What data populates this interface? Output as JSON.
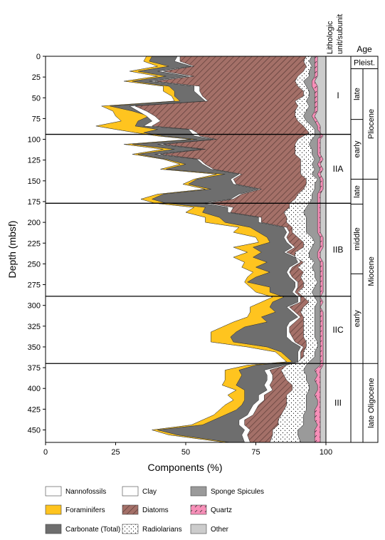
{
  "chart_data": {
    "type": "area",
    "xlabel": "Components (%)",
    "ylabel": "Depth (mbsf)",
    "xlim": [
      0,
      100
    ],
    "ylim": [
      0,
      465
    ],
    "xticks": [
      "0",
      "25",
      "50",
      "75",
      "100"
    ],
    "yticks": [
      "0",
      "25",
      "50",
      "75",
      "100",
      "125",
      "150",
      "175",
      "200",
      "225",
      "250",
      "275",
      "300",
      "325",
      "350",
      "375",
      "400",
      "425",
      "450"
    ],
    "lithology_header": [
      "Lithologic",
      "unit/subunit"
    ],
    "age_header": "Age",
    "depth": [
      0,
      6,
      12,
      18,
      24,
      30,
      36,
      42,
      48,
      54,
      60,
      66,
      72,
      78,
      84,
      88,
      92,
      96,
      100,
      106,
      112,
      118,
      124,
      130,
      136,
      142,
      148,
      154,
      160,
      166,
      172,
      177,
      182,
      188,
      194,
      200,
      206,
      212,
      218,
      224,
      230,
      236,
      242,
      248,
      254,
      260,
      266,
      272,
      278,
      284,
      290,
      296,
      302,
      308,
      314,
      320,
      326,
      332,
      338,
      344,
      350,
      356,
      362,
      368,
      372,
      378,
      384,
      390,
      396,
      402,
      408,
      414,
      420,
      426,
      432,
      438,
      444,
      450,
      456,
      465
    ],
    "series": [
      {
        "name": "Nannofossils",
        "color": "#ffffff",
        "values": [
          36,
          35,
          40,
          30,
          40,
          28,
          42,
          42,
          45,
          46,
          20,
          24,
          25,
          27,
          18,
          25,
          32,
          40,
          52,
          28,
          42,
          31,
          42,
          48,
          41,
          61,
          53,
          49,
          57,
          40,
          34,
          39,
          53,
          50,
          57,
          57,
          69,
          67,
          75,
          76,
          67,
          72,
          67,
          71,
          70,
          74,
          72,
          71,
          73,
          75,
          81,
          77,
          73,
          73,
          72,
          67,
          63,
          59,
          59,
          59,
          72,
          82,
          84,
          86,
          72,
          64,
          64,
          64,
          63,
          68,
          65,
          67,
          64,
          62,
          60,
          56,
          52,
          38,
          44,
          64
        ]
      },
      {
        "name": "Foraminifers",
        "color": "#ffc41f",
        "values": [
          38,
          37,
          44,
          33,
          43,
          31,
          44,
          46,
          46,
          48,
          23,
          31,
          37,
          33,
          32,
          40,
          35,
          42,
          54,
          31,
          46,
          33,
          43,
          50,
          43,
          64,
          54,
          51,
          59,
          42,
          38,
          43,
          57,
          56,
          62,
          64,
          73,
          76,
          79,
          80,
          74,
          77,
          74,
          79,
          75,
          80,
          75,
          72,
          80,
          80,
          85,
          81,
          80,
          82,
          77,
          79,
          71,
          68,
          66,
          67,
          79,
          84,
          86,
          88,
          75,
          69,
          70,
          69,
          68,
          71,
          71,
          71,
          70,
          68,
          64,
          60,
          56,
          40,
          47,
          66
        ]
      },
      {
        "name": "Carbonate (Total)",
        "color": "#6e6e6e",
        "values": [
          47,
          46,
          52,
          40,
          51,
          37,
          53,
          53,
          55,
          57,
          30,
          33,
          36,
          38,
          35,
          51,
          52,
          53,
          60,
          40,
          56,
          39,
          54,
          56,
          59,
          69,
          66,
          67,
          76,
          69,
          66,
          56,
          65,
          65,
          76,
          76,
          85,
          86,
          85,
          86,
          88,
          85,
          89,
          90,
          87,
          86,
          87,
          89,
          89,
          88,
          90,
          90,
          86,
          88,
          90,
          87,
          86,
          86,
          86,
          88,
          91,
          90,
          90,
          90,
          85,
          78,
          79,
          79,
          78,
          79,
          76,
          76,
          74,
          73,
          72,
          69,
          69,
          71,
          70,
          71
        ]
      },
      {
        "name": "Clay",
        "color": "#ffffff",
        "values": [
          48,
          48,
          53,
          42,
          53,
          39,
          55,
          55,
          56,
          58,
          32,
          36,
          39,
          41,
          38,
          52,
          54,
          55,
          61,
          42,
          57,
          41,
          55,
          57,
          60,
          70,
          67,
          68,
          77,
          70,
          67,
          58,
          67,
          66,
          77,
          77,
          86,
          87,
          86,
          87,
          89,
          86,
          90,
          91,
          88,
          87,
          88,
          90,
          90,
          89,
          91,
          91,
          87,
          89,
          91,
          89,
          87,
          87,
          88,
          89,
          92,
          91,
          91,
          91,
          86,
          80,
          81,
          81,
          80,
          81,
          78,
          78,
          76,
          75,
          74,
          71,
          71,
          73,
          72,
          73
        ]
      },
      {
        "name": "Diatoms",
        "color": "#a47068",
        "values": [
          93,
          92,
          93,
          92,
          90,
          89,
          90,
          92,
          92,
          89,
          90,
          89,
          89,
          90,
          92,
          93,
          94,
          92,
          90,
          89,
          89,
          89,
          91,
          91,
          91,
          91,
          93,
          93,
          92,
          90,
          89,
          87,
          87,
          85,
          86,
          86,
          88,
          88,
          90,
          92,
          92,
          89,
          89,
          92,
          90,
          92,
          91,
          92,
          92,
          90,
          92,
          94,
          92,
          91,
          92,
          92,
          92,
          92,
          92,
          93,
          93,
          92,
          92,
          90,
          86,
          84,
          85,
          86,
          88,
          88,
          86,
          86,
          86,
          85,
          84,
          83,
          83,
          81,
          81,
          80
        ]
      },
      {
        "name": "Radiolarians",
        "color": "#ffffff",
        "values": [
          95,
          94,
          95,
          94,
          94,
          92,
          93,
          94,
          94,
          93,
          94,
          93,
          92,
          93,
          95,
          96,
          96,
          96,
          95,
          94,
          95,
          95,
          96,
          95,
          96,
          95,
          97,
          96,
          96,
          95,
          95,
          94,
          93,
          92,
          93,
          93,
          93,
          93,
          95,
          96,
          95,
          94,
          94,
          96,
          95,
          96,
          96,
          97,
          96,
          95,
          96,
          97,
          96,
          96,
          96,
          96,
          96,
          96,
          96,
          97,
          97,
          96,
          96,
          94,
          93,
          92,
          93,
          93,
          94,
          94,
          93,
          93,
          93,
          93,
          92,
          92,
          92,
          90,
          90,
          91
        ]
      },
      {
        "name": "Sponge Spicules",
        "color": "#9a9a9a",
        "values": [
          96,
          96,
          96,
          96,
          96,
          95,
          95,
          96,
          96,
          96,
          96,
          96,
          95,
          96,
          97,
          97,
          98,
          98,
          97,
          97,
          97,
          97,
          98,
          97,
          98,
          97,
          98,
          98,
          98,
          97,
          97,
          97,
          97,
          97,
          97,
          97,
          97,
          97,
          98,
          98,
          98,
          97,
          97,
          98,
          98,
          98,
          98,
          98,
          98,
          98,
          98,
          98,
          98,
          98,
          98,
          98,
          98,
          98,
          98,
          98,
          98,
          98,
          98,
          98,
          98,
          96,
          97,
          96,
          97,
          97,
          96,
          97,
          97,
          96,
          96,
          96,
          97,
          96,
          96,
          96
        ]
      },
      {
        "name": "Quartz",
        "color": "#f78fb8",
        "values": [
          97,
          97,
          97,
          97,
          97,
          96,
          97,
          97,
          97,
          97,
          97,
          97,
          96,
          97,
          98,
          98,
          98,
          99,
          98,
          98,
          98,
          98,
          99,
          98,
          99,
          98,
          99,
          99,
          99,
          98,
          98,
          98,
          98,
          98,
          98,
          98,
          98,
          98,
          99,
          99,
          99,
          98,
          98,
          99,
          99,
          99,
          99,
          99,
          99,
          99,
          98,
          99,
          98,
          99,
          99,
          99,
          99,
          99,
          99,
          99,
          99,
          99,
          99,
          99,
          99,
          98,
          98,
          98,
          98,
          98,
          98,
          98,
          98,
          98,
          98,
          98,
          98,
          98,
          98,
          98
        ]
      },
      {
        "name": "Other",
        "color": "#cccccc",
        "values": [
          100,
          100,
          100,
          100,
          100,
          100,
          100,
          100,
          100,
          100,
          100,
          100,
          100,
          100,
          100,
          100,
          100,
          100,
          100,
          100,
          100,
          100,
          100,
          100,
          100,
          100,
          100,
          100,
          100,
          100,
          100,
          100,
          100,
          100,
          100,
          100,
          100,
          100,
          100,
          100,
          100,
          100,
          100,
          100,
          100,
          100,
          100,
          100,
          100,
          100,
          100,
          100,
          100,
          100,
          100,
          100,
          100,
          100,
          100,
          100,
          100,
          100,
          100,
          100,
          100,
          100,
          100,
          100,
          100,
          100,
          100,
          100,
          100,
          100,
          100,
          100,
          100,
          100,
          100,
          100
        ]
      }
    ],
    "unit_boundaries": [
      94,
      177,
      289,
      370
    ],
    "lithologic_units": [
      {
        "label": "I",
        "top": 0,
        "bottom": 94
      },
      {
        "label": "IIA",
        "top": 94,
        "bottom": 177
      },
      {
        "label": "IIB",
        "top": 177,
        "bottom": 289
      },
      {
        "label": "IIC",
        "top": 289,
        "bottom": 370
      },
      {
        "label": "III",
        "top": 370,
        "bottom": 465
      }
    ],
    "epochs": [
      {
        "label": "Pleist.",
        "top": 0,
        "bottom": 15
      },
      {
        "label": "Pliocene",
        "top": 15,
        "bottom": 148
      },
      {
        "label": "Miocene",
        "top": 148,
        "bottom": 370
      },
      {
        "label": "late Oligocene",
        "top": 370,
        "bottom": 465
      }
    ],
    "subepochs": [
      {
        "label": "late",
        "top": 15,
        "bottom": 76
      },
      {
        "label": "early",
        "top": 76,
        "bottom": 148
      },
      {
        "label": "late",
        "top": 148,
        "bottom": 178
      },
      {
        "label": "middle",
        "top": 178,
        "bottom": 262
      },
      {
        "label": "early",
        "top": 262,
        "bottom": 370
      }
    ],
    "legend": [
      {
        "label": "Nannofossils",
        "color": "#ffffff",
        "pattern": "solid"
      },
      {
        "label": "Clay",
        "color": "#ffffff",
        "pattern": "solid"
      },
      {
        "label": "Sponge Spicules",
        "color": "#9a9a9a",
        "pattern": "solid"
      },
      {
        "label": "Foraminifers",
        "color": "#ffc41f",
        "pattern": "solid"
      },
      {
        "label": "Diatoms",
        "color": "#a47068",
        "pattern": "hatch"
      },
      {
        "label": "Quartz",
        "color": "#f78fb8",
        "pattern": "dash"
      },
      {
        "label": "Carbonate (Total)",
        "color": "#6e6e6e",
        "pattern": "solid"
      },
      {
        "label": "Radiolarians",
        "color": "#ffffff",
        "pattern": "dots"
      },
      {
        "label": "Other",
        "color": "#cccccc",
        "pattern": "solid"
      }
    ]
  }
}
